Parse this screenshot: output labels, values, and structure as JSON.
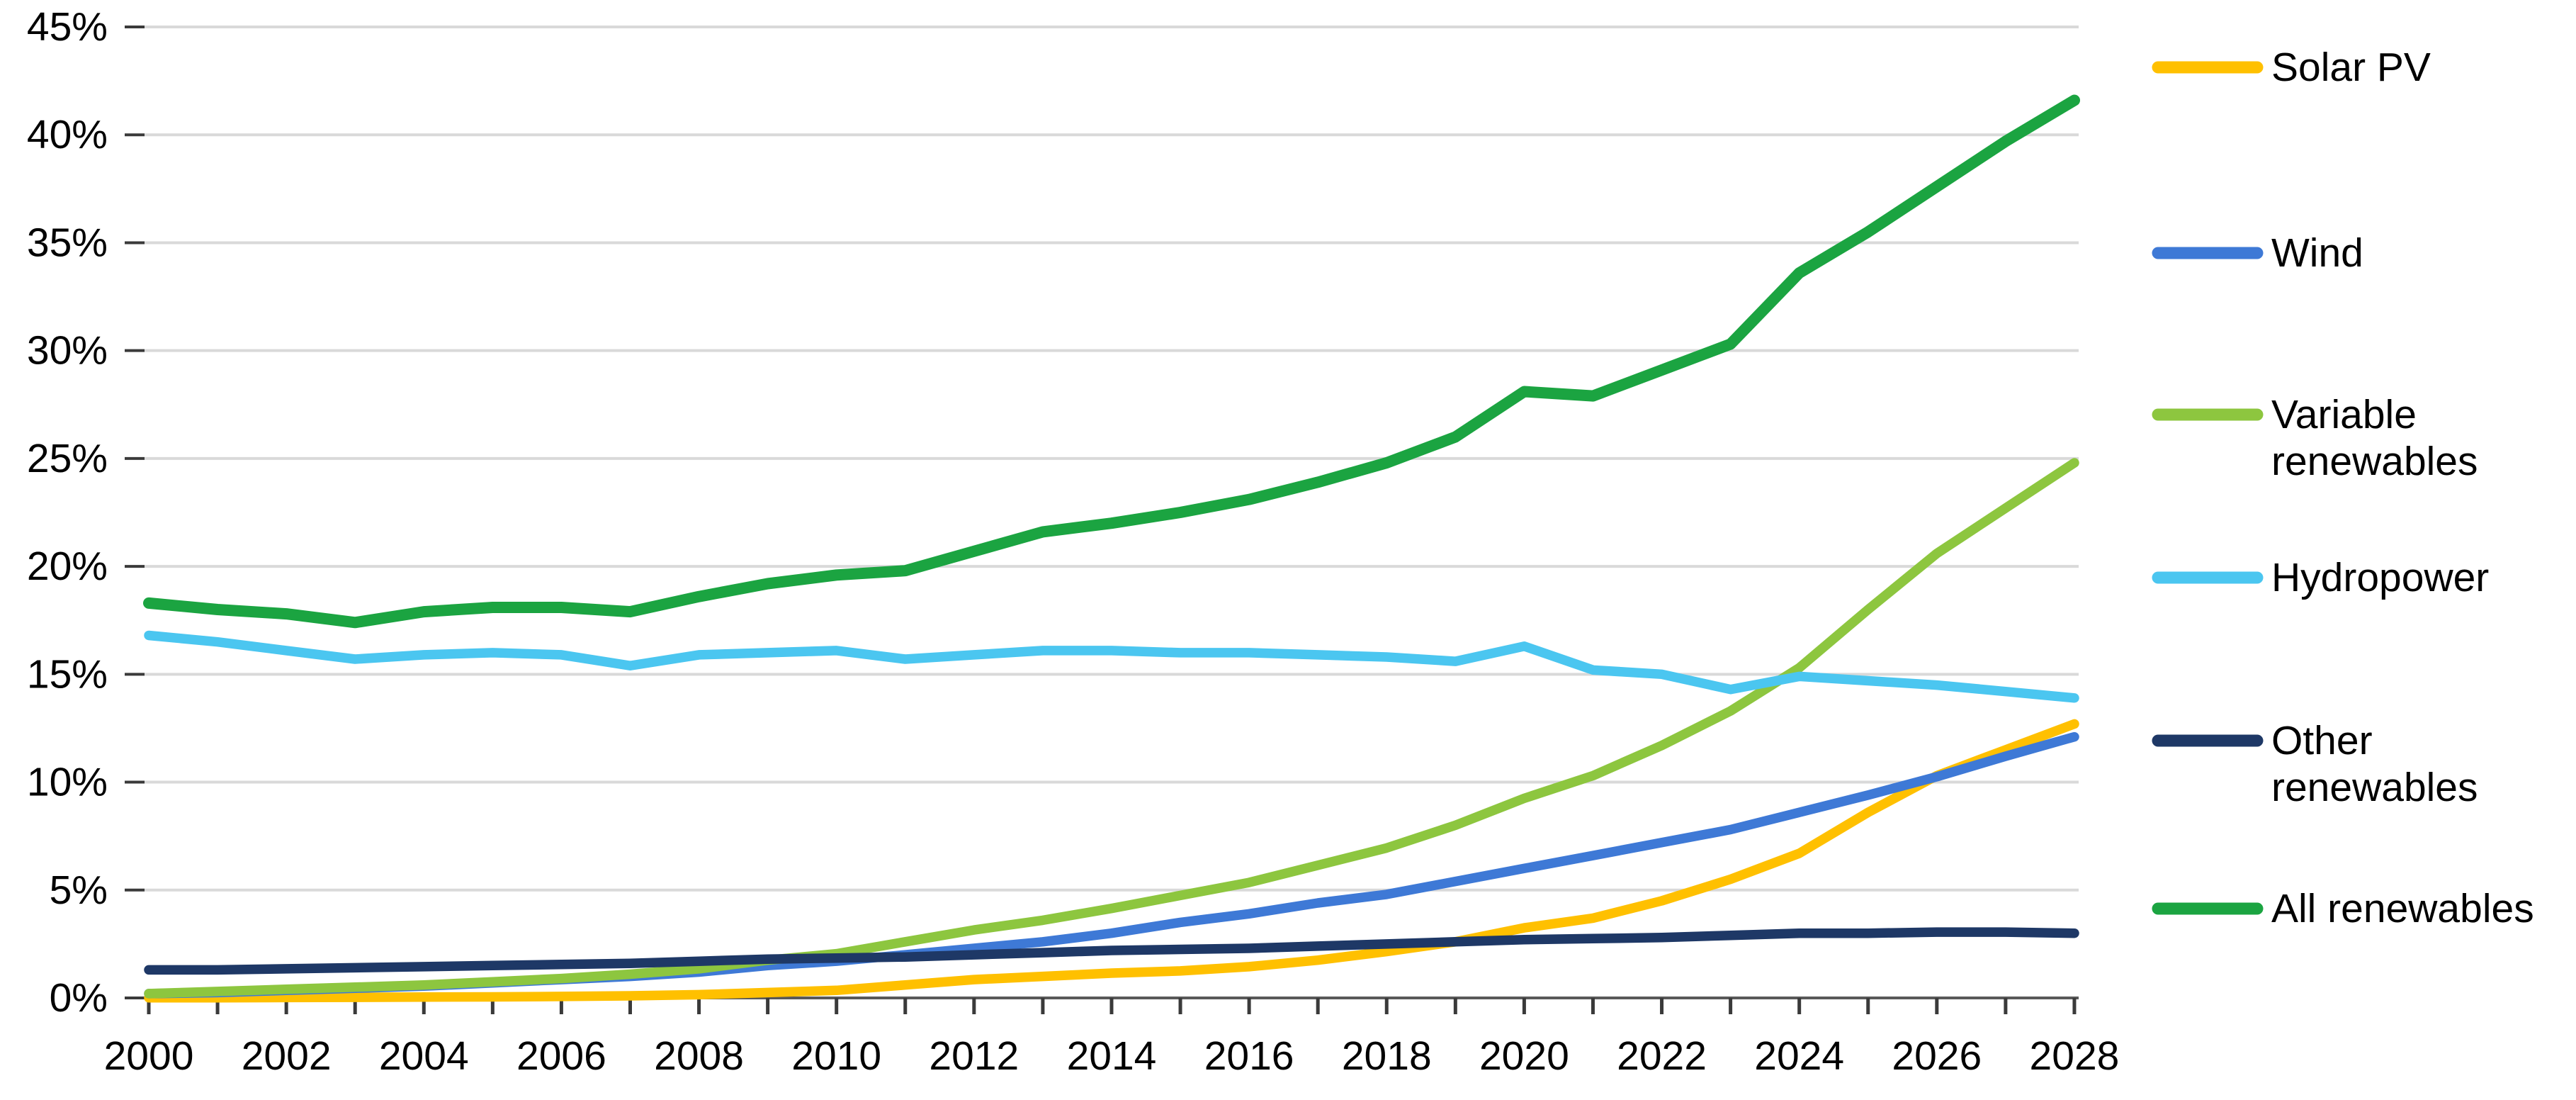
{
  "chart_data": {
    "type": "line",
    "title": "",
    "x": [
      2000,
      2001,
      2002,
      2003,
      2004,
      2005,
      2006,
      2007,
      2008,
      2009,
      2010,
      2011,
      2012,
      2013,
      2014,
      2015,
      2016,
      2017,
      2018,
      2019,
      2020,
      2021,
      2022,
      2023,
      2024,
      2025,
      2026,
      2027,
      2028
    ],
    "series": [
      {
        "key": "solar-pv",
        "name": "Solar PV",
        "color": "#FFC000",
        "legend_lines": [
          "Solar PV"
        ],
        "values": [
          0.01,
          0.01,
          0.02,
          0.03,
          0.04,
          0.05,
          0.07,
          0.1,
          0.15,
          0.25,
          0.35,
          0.6,
          0.85,
          1.0,
          1.15,
          1.25,
          1.45,
          1.75,
          2.15,
          2.6,
          3.25,
          3.7,
          4.5,
          5.5,
          6.7,
          8.6,
          10.3,
          11.5,
          12.7
        ]
      },
      {
        "key": "wind",
        "name": "Wind",
        "color": "#3E79D6",
        "legend_lines": [
          "Wind"
        ],
        "values": [
          0.2,
          0.25,
          0.35,
          0.45,
          0.55,
          0.7,
          0.85,
          1.0,
          1.2,
          1.5,
          1.7,
          2.0,
          2.3,
          2.6,
          3.0,
          3.5,
          3.9,
          4.4,
          4.8,
          5.4,
          6.0,
          6.6,
          7.2,
          7.8,
          8.6,
          9.4,
          10.25,
          11.2,
          12.1
        ]
      },
      {
        "key": "variable-renewables",
        "name": "Variable renewables",
        "color": "#8DC63F",
        "legend_lines": [
          "Variable",
          "renewables"
        ],
        "values": [
          0.2,
          0.3,
          0.4,
          0.5,
          0.6,
          0.75,
          0.9,
          1.1,
          1.35,
          1.75,
          2.05,
          2.6,
          3.15,
          3.6,
          4.15,
          4.75,
          5.35,
          6.15,
          6.95,
          8.0,
          9.25,
          10.3,
          11.7,
          13.3,
          15.3,
          18.0,
          20.6,
          22.7,
          24.8
        ]
      },
      {
        "key": "hydropower",
        "name": "Hydropower",
        "color": "#4BC6F0",
        "legend_lines": [
          "Hydropower"
        ],
        "values": [
          16.8,
          16.5,
          16.1,
          15.7,
          15.9,
          16.0,
          15.9,
          15.4,
          15.9,
          16.0,
          16.1,
          15.7,
          15.9,
          16.1,
          16.1,
          16.0,
          16.0,
          15.9,
          15.8,
          15.6,
          16.3,
          15.2,
          15.0,
          14.3,
          14.9,
          14.7,
          14.5,
          14.2,
          13.9
        ]
      },
      {
        "key": "other-renewables",
        "name": "Other renewables",
        "color": "#1E3866",
        "legend_lines": [
          "Other",
          "renewables"
        ],
        "values": [
          1.3,
          1.3,
          1.35,
          1.4,
          1.45,
          1.5,
          1.55,
          1.6,
          1.7,
          1.8,
          1.85,
          1.9,
          2.0,
          2.1,
          2.2,
          2.25,
          2.3,
          2.4,
          2.5,
          2.6,
          2.7,
          2.75,
          2.8,
          2.9,
          3.0,
          3.0,
          3.05,
          3.05,
          3.0
        ]
      },
      {
        "key": "all-renewables",
        "name": "All renewables",
        "color": "#1BA441",
        "legend_lines": [
          "All renewables"
        ],
        "values": [
          18.3,
          18.0,
          17.8,
          17.4,
          17.9,
          18.1,
          18.1,
          17.9,
          18.6,
          19.2,
          19.6,
          19.8,
          20.7,
          21.6,
          22.0,
          22.5,
          23.1,
          23.9,
          24.8,
          26.0,
          28.1,
          27.9,
          29.1,
          30.3,
          33.6,
          35.5,
          37.6,
          39.7,
          41.6
        ]
      }
    ],
    "y_axis": {
      "min": 0,
      "max": 45,
      "step": 5,
      "unit": "%",
      "tick_labels": [
        "0%",
        "5%",
        "10%",
        "15%",
        "20%",
        "25%",
        "30%",
        "35%",
        "40%",
        "45%"
      ]
    },
    "x_axis": {
      "min": 2000,
      "max": 2028,
      "label_step": 2,
      "minor_tick_every_year": true,
      "tick_labels": [
        "2000",
        "2002",
        "2004",
        "2006",
        "2008",
        "2010",
        "2012",
        "2014",
        "2016",
        "2018",
        "2020",
        "2022",
        "2024",
        "2026",
        "2028"
      ]
    },
    "legend": {
      "position": "right"
    },
    "grid": {
      "horizontal": true,
      "vertical": false,
      "color": "#D9D9D9"
    },
    "axis_color": "#595959",
    "tick_color": "#3A3A3A",
    "text_color": "#000000",
    "background_color": "#FFFFFF"
  }
}
